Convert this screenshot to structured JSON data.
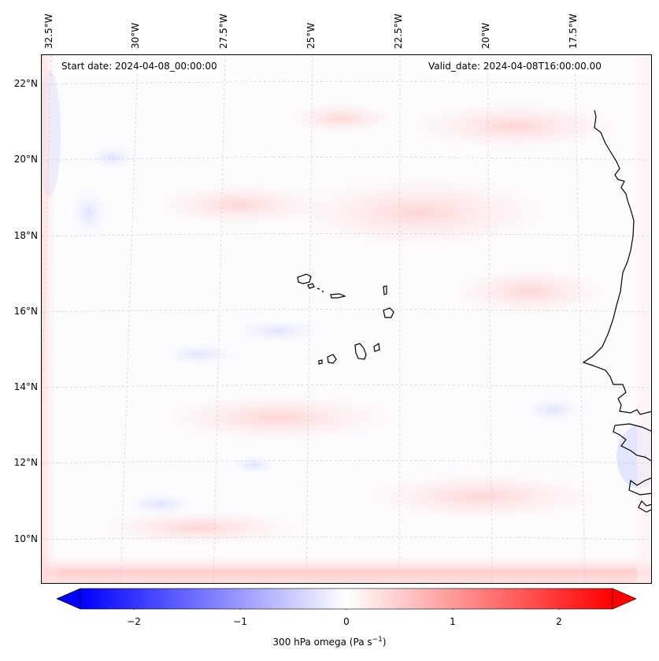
{
  "map": {
    "start_date": "Start date: 2024-04-08_00:00:00",
    "valid_date": "Valid_date: 2024-04-08T16:00:00.00",
    "lon_labels": [
      "32.5°W",
      "30°W",
      "27.5°W",
      "25°W",
      "22.5°W",
      "20°W",
      "17.5°W"
    ],
    "lat_labels": [
      "22°N",
      "20°N",
      "18°N",
      "16°N",
      "14°N",
      "12°N",
      "10°N"
    ],
    "features": [
      "Cape Verde islands",
      "West African coastline"
    ]
  },
  "colorbar": {
    "label": "300 hPa omega (Pa s",
    "label_sup": "−1",
    "label_close": ")",
    "ticks": [
      "−2",
      "−1",
      "0",
      "1",
      "2"
    ],
    "min": -2.7,
    "max": 2.7,
    "colormap": "bwr",
    "low_color": "#0000ff",
    "mid_color": "#ffffff",
    "high_color": "#ff0000"
  }
}
